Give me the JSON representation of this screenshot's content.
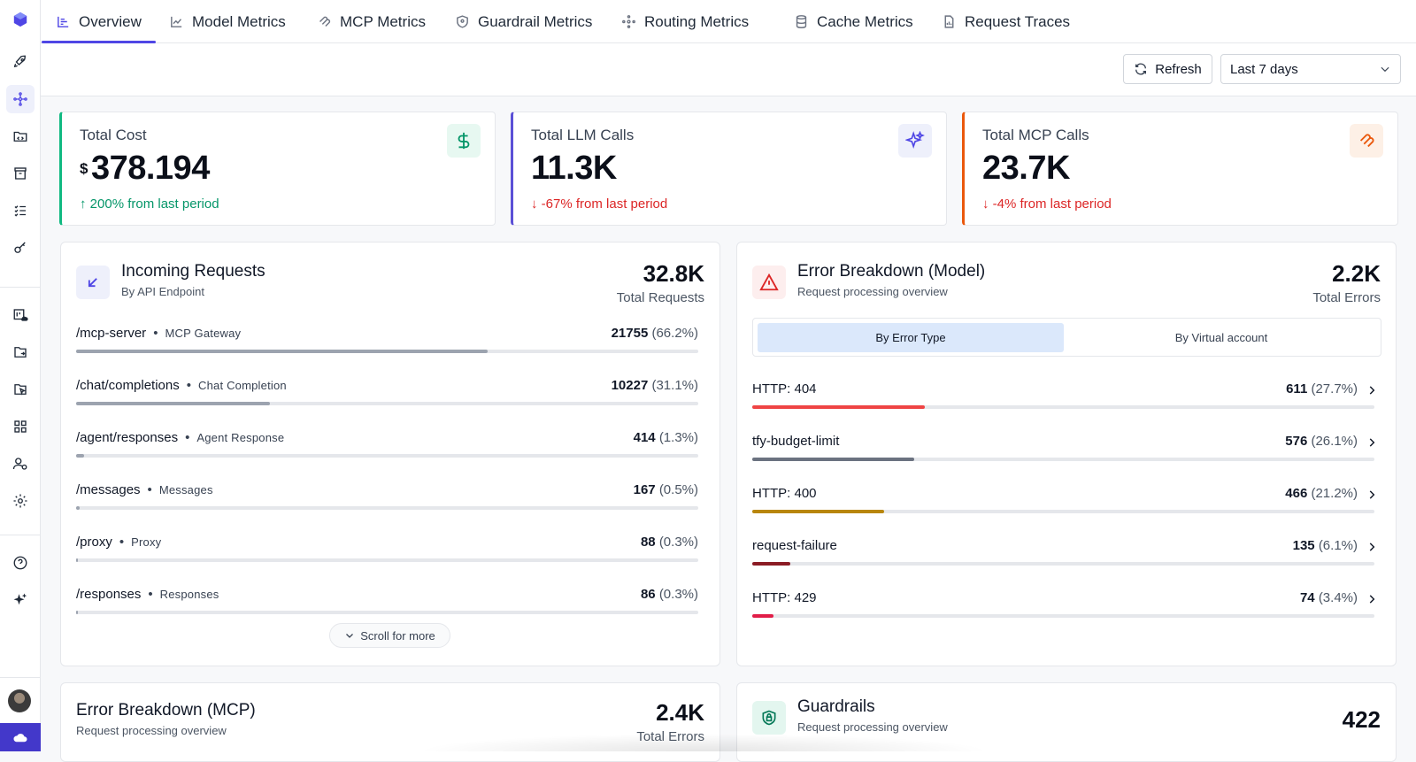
{
  "tabs": [
    {
      "label": "Overview",
      "icon": "bar-list-icon",
      "active": true
    },
    {
      "label": "Model Metrics",
      "icon": "line-chart-icon"
    },
    {
      "label": "MCP Metrics",
      "icon": "mcp-icon"
    },
    {
      "label": "Guardrail Metrics",
      "icon": "shield-icon"
    },
    {
      "label": "Routing Metrics",
      "icon": "routing-icon"
    },
    {
      "label": "Cache Metrics",
      "icon": "database-icon"
    },
    {
      "label": "Request Traces",
      "icon": "document-icon"
    }
  ],
  "toolbar": {
    "refresh_label": "Refresh",
    "range_value": "Last 7 days"
  },
  "kpis": [
    {
      "label": "Total Cost",
      "currency": "$",
      "value": "378.194",
      "change": "200% from last period",
      "trend": "up",
      "accent": "#10b981"
    },
    {
      "label": "Total LLM Calls",
      "value": "11.3K",
      "change": "-67% from last period",
      "trend": "down",
      "accent": "#5b50d6"
    },
    {
      "label": "Total MCP Calls",
      "value": "23.7K",
      "change": "-4% from last period",
      "trend": "down",
      "accent": "#ea580c"
    }
  ],
  "incoming": {
    "title": "Incoming Requests",
    "subtitle": "By API Endpoint",
    "total": "32.8K",
    "total_label": "Total Requests",
    "scroll_label": "Scroll for more",
    "rows": [
      {
        "path": "/mcp-server",
        "desc": "MCP Gateway",
        "count": "21755",
        "pct": "(66.2%)",
        "fraction": 0.662
      },
      {
        "path": "/chat/completions",
        "desc": "Chat Completion",
        "count": "10227",
        "pct": "(31.1%)",
        "fraction": 0.311
      },
      {
        "path": "/agent/responses",
        "desc": "Agent Response",
        "count": "414",
        "pct": "(1.3%)",
        "fraction": 0.013
      },
      {
        "path": "/messages",
        "desc": "Messages",
        "count": "167",
        "pct": "(0.5%)",
        "fraction": 0.005
      },
      {
        "path": "/proxy",
        "desc": "Proxy",
        "count": "88",
        "pct": "(0.3%)",
        "fraction": 0.003
      },
      {
        "path": "/responses",
        "desc": "Responses",
        "count": "86",
        "pct": "(0.3%)",
        "fraction": 0.003
      }
    ]
  },
  "errors_model": {
    "title": "Error Breakdown (Model)",
    "subtitle": "Request processing overview",
    "total": "2.2K",
    "total_label": "Total Errors",
    "segments": [
      "By Error Type",
      "By Virtual account"
    ],
    "rows": [
      {
        "name": "HTTP: 404",
        "count": "611",
        "pct": "(27.7%)",
        "fraction": 0.277,
        "color": "#ef4444"
      },
      {
        "name": "tfy-budget-limit",
        "count": "576",
        "pct": "(26.1%)",
        "fraction": 0.261,
        "color": "#6b7280"
      },
      {
        "name": "HTTP: 400",
        "count": "466",
        "pct": "(21.2%)",
        "fraction": 0.212,
        "color": "#b8860b"
      },
      {
        "name": "request-failure",
        "count": "135",
        "pct": "(6.1%)",
        "fraction": 0.061,
        "color": "#8b1c24"
      },
      {
        "name": "HTTP: 429",
        "count": "74",
        "pct": "(3.4%)",
        "fraction": 0.034,
        "color": "#e11d48"
      }
    ]
  },
  "errors_mcp": {
    "title": "Error Breakdown (MCP)",
    "subtitle": "Request processing overview",
    "total": "2.4K",
    "total_label": "Total Errors"
  },
  "guardrails": {
    "title": "Guardrails",
    "subtitle": "Request processing overview",
    "total": "422"
  }
}
